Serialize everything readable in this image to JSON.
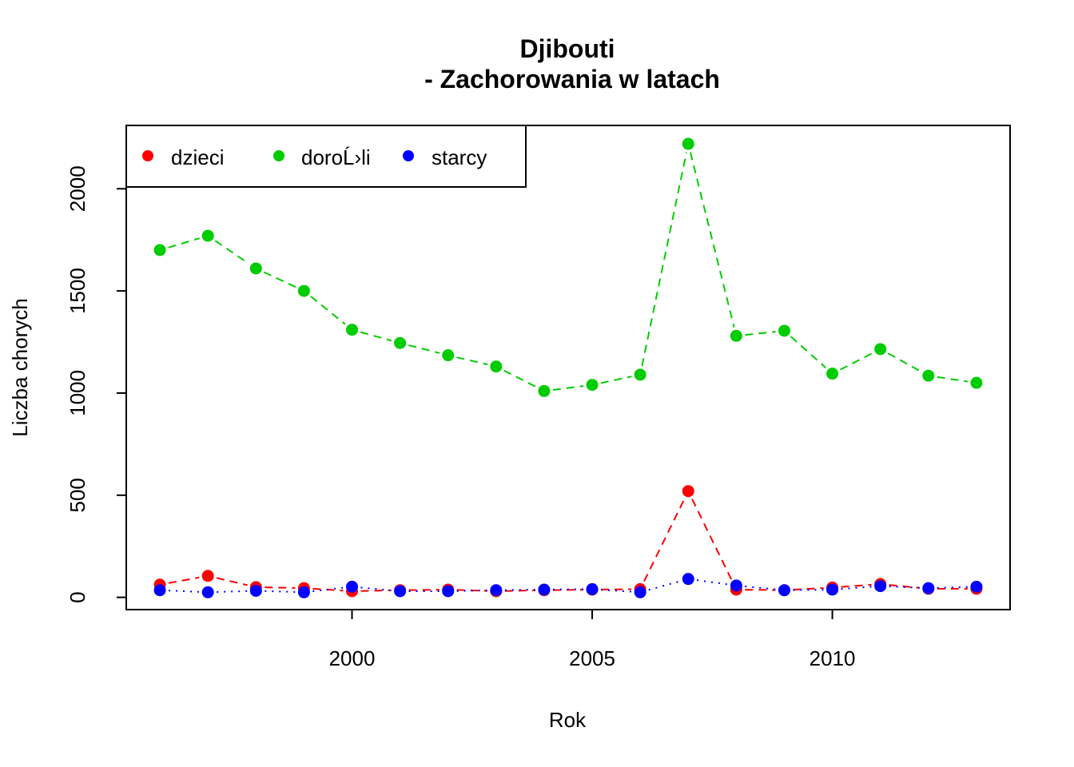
{
  "chart_data": {
    "type": "line",
    "title": "Djibouti",
    "subtitle": "- Zachorowania w latach",
    "xlabel": "Rok",
    "ylabel": "Liczba chorych",
    "x": [
      1996,
      1997,
      1998,
      1999,
      2000,
      2001,
      2002,
      2003,
      2004,
      2005,
      2006,
      2007,
      2008,
      2009,
      2010,
      2011,
      2012,
      2013
    ],
    "xlim": [
      1995.3,
      2013.7
    ],
    "ylim": [
      -60,
      2310
    ],
    "xticks": [
      2000,
      2005,
      2010
    ],
    "yticks": [
      0,
      500,
      1000,
      1500,
      2000
    ],
    "grid": false,
    "legend_position": "top-left",
    "series": [
      {
        "name": "dzieci",
        "color": "#FF0000",
        "line_style": "dashed",
        "values": [
          62,
          105,
          50,
          45,
          30,
          35,
          38,
          30,
          35,
          38,
          40,
          520,
          38,
          35,
          48,
          65,
          42,
          42
        ]
      },
      {
        "name": "doroĹ›li",
        "color": "#00CD00",
        "line_style": "dashed",
        "values": [
          1700,
          1770,
          1610,
          1500,
          1310,
          1245,
          1185,
          1130,
          1010,
          1040,
          1090,
          2220,
          1280,
          1305,
          1095,
          1215,
          1085,
          1050
        ]
      },
      {
        "name": "starcy",
        "color": "#0000FF",
        "line_style": "dotted",
        "values": [
          35,
          25,
          32,
          25,
          52,
          30,
          30,
          35,
          38,
          40,
          25,
          90,
          58,
          35,
          38,
          55,
          45,
          52
        ]
      }
    ]
  }
}
